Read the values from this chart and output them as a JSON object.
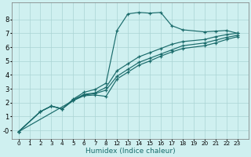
{
  "xlabel": "Humidex (Indice chaleur)",
  "bg_color": "#cff0f0",
  "grid_color": "#aad4d4",
  "line_color": "#1a6b6b",
  "yticks": [
    0,
    1,
    2,
    3,
    4,
    5,
    6,
    7,
    8
  ],
  "ytick_labels": [
    "-0",
    "1",
    "2",
    "3",
    "4",
    "5",
    "6",
    "7",
    "8"
  ],
  "xtick_real": [
    0,
    1,
    2,
    3,
    4,
    5,
    6,
    7,
    8,
    12,
    13,
    14,
    15,
    16,
    17,
    18,
    19,
    20,
    21,
    22,
    23
  ],
  "xtick_pos": [
    0,
    1,
    2,
    3,
    4,
    5,
    6,
    7,
    8,
    9,
    10,
    11,
    12,
    13,
    14,
    15,
    16,
    17,
    18,
    19,
    20
  ],
  "ylim": [
    -0.6,
    9.2
  ],
  "curves": [
    {
      "xreal": [
        0,
        2,
        3,
        4,
        5,
        6,
        7,
        8,
        12,
        13,
        14,
        15,
        16,
        17,
        18,
        20,
        21,
        22,
        23
      ],
      "y": [
        -0.1,
        1.35,
        1.75,
        1.55,
        2.25,
        2.75,
        2.95,
        3.4,
        7.2,
        8.4,
        8.5,
        8.45,
        8.5,
        7.55,
        7.25,
        7.1,
        7.15,
        7.2,
        7.0
      ]
    },
    {
      "xreal": [
        0,
        2,
        3,
        4,
        5,
        6,
        7,
        8,
        12,
        13,
        14,
        15,
        16,
        17,
        18,
        20,
        21,
        22,
        23
      ],
      "y": [
        -0.1,
        1.35,
        1.75,
        1.55,
        2.2,
        2.6,
        2.7,
        3.1,
        4.3,
        4.8,
        5.3,
        5.6,
        5.9,
        6.2,
        6.4,
        6.55,
        6.75,
        6.9,
        7.0
      ]
    },
    {
      "xreal": [
        0,
        2,
        3,
        4,
        5,
        6,
        7,
        8,
        12,
        13,
        14,
        15,
        16,
        17,
        18,
        20,
        21,
        22,
        23
      ],
      "y": [
        -0.1,
        1.35,
        1.75,
        1.55,
        2.15,
        2.55,
        2.65,
        2.9,
        3.9,
        4.4,
        4.9,
        5.2,
        5.5,
        5.8,
        6.1,
        6.3,
        6.5,
        6.7,
        6.85
      ]
    },
    {
      "xreal": [
        0,
        5,
        6,
        7,
        8,
        12,
        13,
        14,
        15,
        16,
        17,
        18,
        20,
        21,
        22,
        23
      ],
      "y": [
        -0.1,
        2.15,
        2.5,
        2.55,
        2.45,
        3.7,
        4.2,
        4.7,
        5.0,
        5.35,
        5.65,
        5.9,
        6.1,
        6.3,
        6.55,
        6.75
      ]
    }
  ]
}
